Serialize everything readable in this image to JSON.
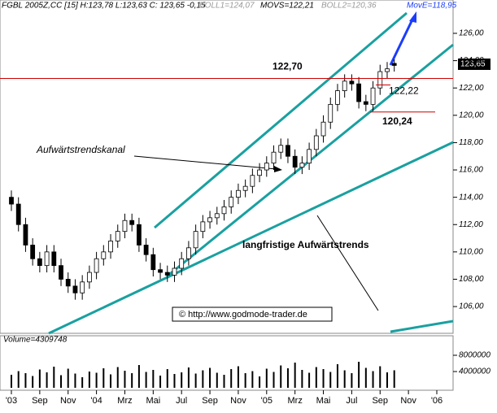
{
  "chart_data": {
    "type": "candlestick",
    "header": [
      "FGBL 2005Z,CC [15] H:123,78 L:123,63 C: 123,65 -0,15",
      "BOLL1=124,07",
      "MOVS=122,21",
      "BOLL2=120,36",
      "MovE=118,95"
    ],
    "volume_label": "Volume=4309748",
    "last_price_label": "123,65",
    "annotations": [
      "Aufwärtstrendskanal",
      "langfristige Aufwärtstrends",
      "© http://www.godmode-trader.de"
    ],
    "levels": [
      {
        "value": 122.7,
        "label": "122,70"
      },
      {
        "value": 122.22,
        "label": "122,22"
      },
      {
        "value": 120.24,
        "label": "120,24"
      }
    ],
    "categories": [
      "'03",
      null,
      null,
      null,
      "Sep",
      null,
      null,
      null,
      "Nov",
      null,
      null,
      null,
      "'04",
      null,
      null,
      null,
      "Mrz",
      null,
      null,
      null,
      "Mai",
      null,
      null,
      null,
      "Jul",
      null,
      null,
      null,
      "Sep",
      null,
      null,
      null,
      "Nov",
      null,
      null,
      null,
      "'05",
      null,
      null,
      null,
      "Mrz",
      null,
      null,
      null,
      "Mai",
      null,
      null,
      null,
      "Jul",
      null,
      null,
      null,
      "Sep",
      null,
      null,
      null,
      "Nov",
      null,
      null,
      null,
      "'06"
    ],
    "open": [
      114,
      113.5,
      112,
      110.5,
      109.5,
      109,
      110,
      109,
      108,
      107.5,
      107,
      107.8,
      108.5,
      109.5,
      110,
      110.8,
      111.5,
      112.3,
      112,
      110.5,
      109.8,
      108.7,
      108.5,
      108.3,
      108.8,
      109.5,
      110.3,
      111.5,
      112.2,
      112.5,
      112.8,
      113.3,
      114,
      114.5,
      114.8,
      115.6,
      116,
      116.5,
      117.3,
      117.8,
      117,
      116.2,
      116.5,
      117.5,
      118.5,
      119.5,
      120.8,
      121.8,
      122.5,
      122.3,
      121,
      120.8,
      122,
      123.2,
      123.8,
      null,
      null,
      null,
      null,
      null,
      null
    ],
    "high": [
      114.5,
      114,
      112.5,
      111,
      110,
      110.5,
      110.5,
      109.5,
      108.5,
      108,
      108.3,
      109,
      110,
      110.5,
      111.3,
      112,
      112.8,
      112.8,
      112.5,
      111,
      110.3,
      109.2,
      109,
      109.3,
      110,
      110.8,
      112,
      112.7,
      113,
      113.3,
      113.8,
      114.5,
      115,
      115.3,
      116.1,
      116.5,
      117,
      117.8,
      118.3,
      118.3,
      117.5,
      117,
      118,
      119,
      120,
      121.3,
      122.3,
      123,
      123,
      122.8,
      121.5,
      122.5,
      123.7,
      123.9,
      124.1,
      null,
      null,
      null,
      null,
      null,
      null
    ],
    "low": [
      113,
      111.5,
      110,
      109,
      108.5,
      108.5,
      108.5,
      107.5,
      107,
      106.5,
      106.5,
      107.3,
      108,
      109,
      109.5,
      110.3,
      111,
      111.5,
      110,
      109.3,
      108.2,
      108,
      107.8,
      107.8,
      108.3,
      109,
      109.8,
      111,
      111.7,
      112,
      112.3,
      112.8,
      113.5,
      114,
      114.3,
      115.1,
      115.5,
      116,
      116.8,
      116.5,
      115.7,
      115.7,
      116,
      117,
      118,
      119,
      120.3,
      121.3,
      121.8,
      120.5,
      120.3,
      120.3,
      121.5,
      122.7,
      123.2,
      null,
      null,
      null,
      null,
      null,
      null
    ],
    "close": [
      113.5,
      112,
      110.5,
      109.5,
      109,
      110,
      109,
      108,
      107.5,
      107,
      107.8,
      108.5,
      109.5,
      110,
      110.8,
      111.5,
      112.3,
      112,
      110.5,
      109.8,
      108.7,
      108.5,
      108.3,
      108.8,
      109.5,
      110.3,
      111.5,
      112.2,
      112.5,
      112.8,
      113.3,
      114,
      114.5,
      114.8,
      115.6,
      116,
      116.5,
      117.3,
      117.8,
      117,
      116.2,
      116.5,
      117.5,
      118.5,
      119.5,
      120.8,
      121.8,
      122.5,
      122.3,
      121,
      120.8,
      122,
      123.2,
      123.4,
      123.65,
      null,
      null,
      null,
      null,
      null,
      null
    ],
    "volume": [
      3200000,
      4100000,
      3600000,
      2900000,
      4500000,
      3800000,
      5200000,
      3100000,
      4700000,
      3500000,
      2600000,
      4000000,
      3700000,
      4800000,
      3300000,
      5100000,
      4200000,
      3600000,
      5600000,
      3900000,
      4400000,
      3000000,
      4600000,
      3400000,
      3800000,
      5000000,
      3500000,
      4300000,
      4900000,
      3700000,
      3200000,
      4600000,
      5300000,
      3600000,
      4100000,
      2800000,
      4700000,
      3900000,
      5500000,
      4800000,
      6200000,
      4400000,
      3700000,
      5100000,
      4600000,
      3900000,
      5800000,
      4300000,
      3600000,
      6400000,
      4900000,
      4100000,
      5300000,
      3800000,
      4309748,
      null,
      null,
      null,
      null,
      null,
      null
    ],
    "ylim": [
      104.04,
      128.44
    ],
    "yticks": [
      {
        "value": 106,
        "label": "106,00"
      },
      {
        "value": 108,
        "label": "108,00"
      },
      {
        "value": 110,
        "label": "110,00"
      },
      {
        "value": 112,
        "label": "112,00"
      },
      {
        "value": 114,
        "label": "114,00"
      },
      {
        "value": 116,
        "label": "116,00"
      },
      {
        "value": 118,
        "label": "118,00"
      },
      {
        "value": 120,
        "label": "120,00"
      },
      {
        "value": 122,
        "label": "122,00"
      },
      {
        "value": 124,
        "label": "124,00"
      },
      {
        "value": 126,
        "label": "126,00"
      }
    ],
    "volume_ylim": [
      0,
      12000000
    ],
    "volume_yticks": [
      4000000,
      8000000
    ],
    "up_color": "#ffffff",
    "down_color": "#000000",
    "level_color": "#cc0000"
  }
}
